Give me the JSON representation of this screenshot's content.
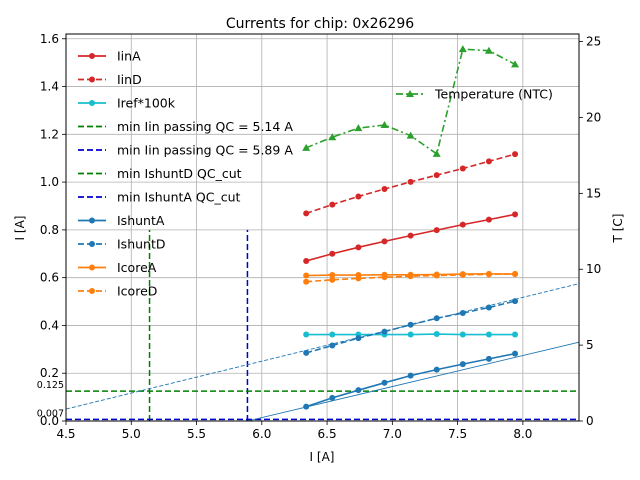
{
  "chart_data": {
    "type": "line",
    "title": "Currents for chip: 0x26296",
    "xlabel": "I [A]",
    "ylabel": "I [A]",
    "y2label": "T [C]",
    "xlim": [
      4.5,
      8.43
    ],
    "ylim": [
      0.0,
      1.62
    ],
    "y2lim": [
      0.0,
      25.5
    ],
    "xticks": [
      "4.5",
      "5.0",
      "5.5",
      "6.0",
      "6.5",
      "7.0",
      "7.5",
      "8.0"
    ],
    "yticks": [
      "0.0",
      "0.2",
      "0.4",
      "0.6",
      "0.8",
      "1.0",
      "1.2",
      "1.4",
      "1.6"
    ],
    "y2ticks": [
      "0",
      "5",
      "10",
      "15",
      "20",
      "25"
    ],
    "grid": true,
    "x": [
      6.34,
      6.54,
      6.74,
      6.94,
      7.14,
      7.34,
      7.54,
      7.74,
      7.94
    ],
    "series": [
      {
        "name": "IinA",
        "color": "#d62728",
        "style": "solid",
        "marker": "circle",
        "values": [
          0.67,
          0.7,
          0.727,
          0.752,
          0.776,
          0.799,
          0.822,
          0.843,
          0.865
        ]
      },
      {
        "name": "IinD",
        "color": "#d62728",
        "style": "dashed",
        "marker": "circle",
        "values": [
          0.869,
          0.906,
          0.94,
          0.971,
          1.001,
          1.029,
          1.057,
          1.087,
          1.117
        ]
      },
      {
        "name": "Iref*100k",
        "color": "#17becf",
        "style": "solid",
        "marker": "circle",
        "values": [
          0.362,
          0.362,
          0.362,
          0.362,
          0.362,
          0.364,
          0.362,
          0.362,
          0.362
        ]
      },
      {
        "name": "IshuntA",
        "color": "#1f77b4",
        "style": "solid",
        "marker": "circle",
        "values": [
          0.06,
          0.097,
          0.129,
          0.16,
          0.19,
          0.215,
          0.238,
          0.26,
          0.282
        ]
      },
      {
        "name": "IshuntD",
        "color": "#1f77b4",
        "style": "dashed",
        "marker": "circle",
        "values": [
          0.285,
          0.316,
          0.347,
          0.374,
          0.403,
          0.43,
          0.452,
          0.475,
          0.502
        ]
      },
      {
        "name": "IcoreA",
        "color": "#ff7f0e",
        "style": "solid",
        "marker": "circle",
        "values": [
          0.609,
          0.611,
          0.611,
          0.612,
          0.612,
          0.613,
          0.615,
          0.616,
          0.615
        ]
      },
      {
        "name": "IcoreD",
        "color": "#ff7f0e",
        "style": "dashed",
        "marker": "circle",
        "values": [
          0.583,
          0.591,
          0.597,
          0.602,
          0.606,
          0.609,
          0.612,
          0.614,
          0.616
        ]
      }
    ],
    "temperature_series": {
      "name": "Temperature (NTC)",
      "color": "#2ca02c",
      "style": "dashdot",
      "marker": "triangle",
      "values": [
        18.0,
        18.7,
        19.3,
        19.5,
        18.8,
        17.6,
        24.5,
        24.4,
        23.5
      ]
    },
    "reference_lines": [
      {
        "name": "min Iin passing QC = 5.14 A",
        "orientation": "vertical",
        "value": 5.14,
        "ymax": 0.8,
        "color": "#008000"
      },
      {
        "name": "min Iin passing QC = 5.89 A",
        "orientation": "vertical",
        "value": 5.89,
        "ymax": 0.8,
        "color": "#0000cc"
      },
      {
        "name": "min IshuntD QC_cut",
        "orientation": "horizontal",
        "value": 0.125,
        "label": "0.125",
        "color": "#008000"
      },
      {
        "name": "min IshuntA QC_cut",
        "orientation": "horizontal",
        "value": 0.007,
        "label": "0.007",
        "color": "#0000cc"
      }
    ],
    "fit_lines": [
      {
        "series": "IshuntD",
        "x_start": 4.5,
        "y_start": 0.05,
        "x_end": 8.43,
        "y_end": 0.575,
        "color": "#1f77b4",
        "style": "dashed"
      },
      {
        "series": "IshuntA",
        "x_start": 5.89,
        "y_start": 0.0,
        "x_end": 8.43,
        "y_end": 0.33,
        "color": "#1f77b4",
        "style": "solid"
      }
    ],
    "legend_order": [
      "IinA",
      "IinD",
      "Iref*100k",
      "min Iin passing QC = 5.14 A",
      "min Iin passing QC = 5.89 A",
      "min IshuntD QC_cut",
      "min IshuntA QC_cut",
      "IshuntA",
      "IshuntD",
      "IcoreA",
      "IcoreD"
    ],
    "legend_placement": "top-left",
    "temperature_legend_placement": "top-right"
  }
}
